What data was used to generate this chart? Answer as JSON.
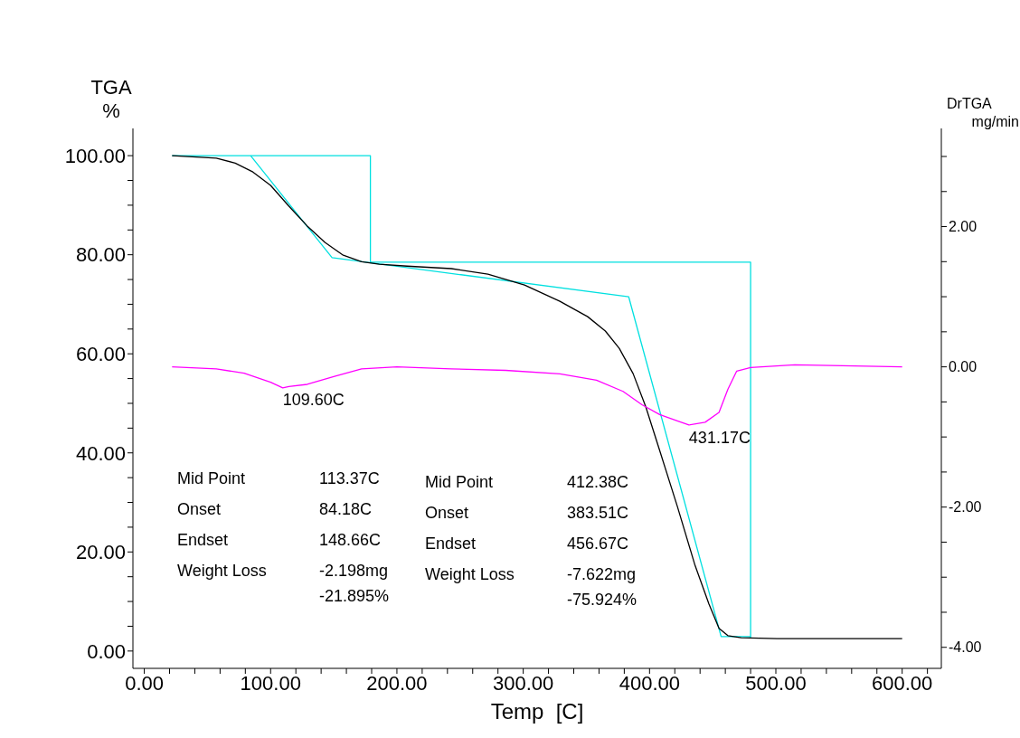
{
  "chart_data": {
    "type": "line",
    "xlabel": "Temp  [C]",
    "ylabel": "TGA %",
    "y2label": "DrTGA mg/min",
    "xlim": [
      -9,
      631
    ],
    "ylim": [
      -3.5,
      105.5
    ],
    "y2lim": [
      -4.3,
      3.4
    ],
    "xticks": [
      {
        "value": 0,
        "label": "0.00"
      },
      {
        "value": 20,
        "label": null
      },
      {
        "value": 40,
        "label": null
      },
      {
        "value": 60,
        "label": null
      },
      {
        "value": 80,
        "label": null
      },
      {
        "value": 100,
        "label": "100.00"
      },
      {
        "value": 120,
        "label": null
      },
      {
        "value": 140,
        "label": null
      },
      {
        "value": 160,
        "label": null
      },
      {
        "value": 180,
        "label": null
      },
      {
        "value": 200,
        "label": "200.00"
      },
      {
        "value": 220,
        "label": null
      },
      {
        "value": 240,
        "label": null
      },
      {
        "value": 260,
        "label": null
      },
      {
        "value": 280,
        "label": null
      },
      {
        "value": 300,
        "label": "300.00"
      },
      {
        "value": 320,
        "label": null
      },
      {
        "value": 340,
        "label": null
      },
      {
        "value": 360,
        "label": null
      },
      {
        "value": 380,
        "label": null
      },
      {
        "value": 400,
        "label": "400.00"
      },
      {
        "value": 420,
        "label": null
      },
      {
        "value": 440,
        "label": null
      },
      {
        "value": 460,
        "label": null
      },
      {
        "value": 480,
        "label": null
      },
      {
        "value": 500,
        "label": "500.00"
      },
      {
        "value": 520,
        "label": null
      },
      {
        "value": 540,
        "label": null
      },
      {
        "value": 560,
        "label": null
      },
      {
        "value": 580,
        "label": null
      },
      {
        "value": 600,
        "label": "600.00"
      },
      {
        "value": 620,
        "label": null
      }
    ],
    "yticks": [
      {
        "value": 0,
        "label": "0.00"
      },
      {
        "value": 5,
        "label": null
      },
      {
        "value": 10,
        "label": null
      },
      {
        "value": 15,
        "label": null
      },
      {
        "value": 20,
        "label": "20.00"
      },
      {
        "value": 25,
        "label": null
      },
      {
        "value": 30,
        "label": null
      },
      {
        "value": 35,
        "label": null
      },
      {
        "value": 40,
        "label": "40.00"
      },
      {
        "value": 45,
        "label": null
      },
      {
        "value": 50,
        "label": null
      },
      {
        "value": 55,
        "label": null
      },
      {
        "value": 60,
        "label": "60.00"
      },
      {
        "value": 65,
        "label": null
      },
      {
        "value": 70,
        "label": null
      },
      {
        "value": 75,
        "label": null
      },
      {
        "value": 80,
        "label": "80.00"
      },
      {
        "value": 85,
        "label": null
      },
      {
        "value": 90,
        "label": null
      },
      {
        "value": 95,
        "label": null
      },
      {
        "value": 100,
        "label": "100.00"
      }
    ],
    "y2ticks": [
      {
        "value": -4,
        "label": "-4.00"
      },
      {
        "value": -3.5,
        "label": null
      },
      {
        "value": -3,
        "label": null
      },
      {
        "value": -2.5,
        "label": null
      },
      {
        "value": -2,
        "label": "-2.00"
      },
      {
        "value": -1.5,
        "label": null
      },
      {
        "value": -1,
        "label": null
      },
      {
        "value": -0.5,
        "label": null
      },
      {
        "value": 0,
        "label": "0.00"
      },
      {
        "value": 0.5,
        "label": null
      },
      {
        "value": 1,
        "label": null
      },
      {
        "value": 1.5,
        "label": null
      },
      {
        "value": 2,
        "label": "2.00"
      },
      {
        "value": 2.5,
        "label": null
      },
      {
        "value": 3,
        "label": null
      }
    ],
    "marker": "none",
    "line_style": "solid",
    "series": [
      {
        "color": "#00e0e0",
        "x": [
          22,
          179,
          179,
          480,
          480
        ],
        "values": [
          100,
          100,
          78.5,
          78.5,
          2.7
        ]
      },
      {
        "color": "#00e0e0",
        "x": [
          84.18,
          148.66,
          383.51,
          456.67,
          480
        ],
        "values": [
          100,
          79.4,
          71.5,
          2.9,
          2.9
        ]
      },
      {
        "color": "#000000",
        "x": [
          22,
          57,
          72,
          86,
          100,
          114.5,
          129,
          143,
          157.5,
          172,
          186,
          208,
          243,
          272,
          301,
          329,
          351,
          365,
          376,
          387,
          397,
          408,
          422,
          436,
          447,
          455,
          462,
          472.5,
          501,
          600
        ],
        "values": [
          100,
          99.5,
          98.5,
          96.7,
          94,
          89.8,
          85.8,
          82.5,
          79.9,
          78.6,
          78.1,
          77.7,
          77.2,
          76.1,
          73.9,
          70.6,
          67.5,
          64.6,
          61.1,
          56,
          49.3,
          40.5,
          29.2,
          17.3,
          9.5,
          4.6,
          3.1,
          2.7,
          2.5,
          2.5
        ]
      },
      {
        "color": "#ff00ff",
        "axis": "y2",
        "x": [
          22,
          57,
          79,
          100,
          109.6,
          114.5,
          129,
          150,
          172,
          200,
          243,
          286,
          329,
          358,
          379,
          394,
          408,
          422,
          431.17,
          444,
          455,
          462,
          469,
          480,
          515,
          600
        ],
        "values": [
          0,
          -0.03,
          -0.09,
          -0.22,
          -0.3,
          -0.28,
          -0.25,
          -0.14,
          -0.03,
          0,
          -0.03,
          -0.05,
          -0.1,
          -0.19,
          -0.35,
          -0.54,
          -0.68,
          -0.77,
          -0.83,
          -0.79,
          -0.65,
          -0.32,
          -0.06,
          -0.01,
          0.03,
          0
        ]
      }
    ],
    "annotations": [
      "Mid Point",
      "113.37C",
      "Onset",
      "84.18C",
      "Endset",
      "148.66C",
      "Weight Loss",
      "-2.198mg",
      "-21.895%",
      "Mid Point",
      "412.38C",
      "Onset",
      "383.51C",
      "Endset",
      "456.67C",
      "Weight Loss",
      "-7.622mg",
      "-75.924%",
      {
        "text": "109.60C",
        "x": 109.6,
        "y": 53.3
      },
      {
        "text": "431.17C",
        "x": 431.17,
        "y": 45.6
      }
    ]
  }
}
